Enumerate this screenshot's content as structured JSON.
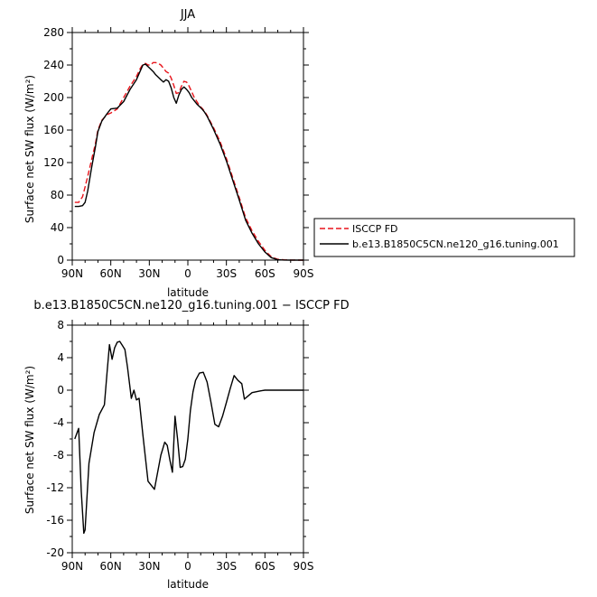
{
  "chart_data": [
    {
      "type": "line",
      "title": "JJA",
      "xlabel": "latitude",
      "ylabel": "Surface net SW flux (W/m²)",
      "xlim": [
        90,
        -90
      ],
      "ylim": [
        0,
        280
      ],
      "xticks": [
        90,
        60,
        30,
        0,
        -30,
        -60,
        -90
      ],
      "xtick_labels": [
        "90N",
        "60N",
        "30N",
        "0",
        "30S",
        "60S",
        "90S"
      ],
      "yticks": [
        0,
        40,
        80,
        120,
        160,
        200,
        240,
        280
      ],
      "ytick_labels": [
        "0",
        "40",
        "80",
        "120",
        "160",
        "200",
        "240",
        "280"
      ],
      "grid": false,
      "legend_position": "right",
      "series": [
        {
          "name": "ISCCP FD",
          "color": "#e8141b",
          "dash": "dashed",
          "x": [
            88,
            85,
            82,
            80,
            78,
            75,
            72,
            70,
            67,
            63,
            60,
            55,
            50,
            45,
            40,
            37,
            35,
            33,
            31,
            29,
            27,
            25,
            23,
            21,
            19,
            17,
            15,
            13,
            11,
            9,
            7,
            5,
            3,
            1,
            -1,
            -3,
            -5,
            -7,
            -9,
            -11,
            -13,
            -15,
            -20,
            -25,
            -30,
            -35,
            -40,
            -45,
            -50,
            -55,
            -60,
            -65,
            -70,
            -75,
            -80,
            -85,
            -90
          ],
          "y": [
            71,
            71,
            78,
            90,
            103,
            123,
            143,
            160,
            172,
            179,
            181,
            186,
            200,
            214,
            226,
            236,
            241,
            242,
            240,
            240,
            243,
            243,
            242,
            240,
            236,
            232,
            230,
            224,
            215,
            205,
            206,
            214,
            220,
            219,
            214,
            207,
            200,
            195,
            190,
            187,
            183,
            178,
            163,
            146,
            125,
            101,
            77,
            52,
            36,
            23,
            12,
            4,
            1,
            0.3,
            0.1,
            0,
            0
          ]
        },
        {
          "name": "b.e13.B1850C5CN.ne120_g16.tuning.001",
          "color": "#000000",
          "dash": "solid",
          "x": [
            88,
            85,
            82,
            80,
            78,
            75,
            72,
            70,
            67,
            63,
            60,
            55,
            50,
            45,
            40,
            37,
            35,
            33,
            31,
            29,
            27,
            25,
            23,
            21,
            19,
            17,
            15,
            13,
            11,
            9,
            7,
            5,
            3,
            1,
            -1,
            -3,
            -5,
            -7,
            -9,
            -11,
            -13,
            -15,
            -20,
            -25,
            -30,
            -35,
            -40,
            -45,
            -50,
            -55,
            -60,
            -65,
            -70,
            -75,
            -80,
            -85,
            -90
          ],
          "y": [
            66,
            66,
            67,
            71,
            85,
            113,
            139,
            158,
            171,
            180,
            186,
            187,
            195,
            210,
            222,
            233,
            240,
            241,
            238,
            235,
            232,
            228,
            225,
            222,
            219,
            222,
            220,
            212,
            200,
            193,
            203,
            210,
            213,
            210,
            206,
            200,
            196,
            192,
            189,
            186,
            182,
            177,
            161,
            143,
            122,
            98,
            74,
            49,
            33,
            20,
            10,
            3,
            0.5,
            0.1,
            0,
            0,
            0
          ]
        }
      ]
    },
    {
      "type": "line",
      "title": "b.e13.B1850C5CN.ne120_g16.tuning.001 − ISCCP FD",
      "xlabel": "latitude",
      "ylabel": "Surface net SW flux (W/m²)",
      "xlim": [
        90,
        -90
      ],
      "ylim": [
        -20,
        8
      ],
      "xticks": [
        90,
        60,
        30,
        0,
        -30,
        -60,
        -90
      ],
      "xtick_labels": [
        "90N",
        "60N",
        "30N",
        "0",
        "30S",
        "60S",
        "90S"
      ],
      "yticks": [
        -20,
        -16,
        -12,
        -8,
        -4,
        0,
        4,
        8
      ],
      "ytick_labels": [
        "-20",
        "-16",
        "-12",
        "-8",
        "-4",
        "0",
        "4",
        "8"
      ],
      "grid": false,
      "series": [
        {
          "name": "",
          "color": "#000000",
          "dash": "solid",
          "x": [
            88,
            85,
            83,
            81,
            80,
            77,
            73,
            69,
            65,
            63,
            61,
            59,
            57,
            55,
            53,
            51,
            49,
            47,
            44,
            42,
            40,
            38,
            35,
            31,
            26,
            21,
            18,
            16,
            14,
            12,
            10,
            8,
            6,
            4,
            2,
            0,
            -2,
            -4,
            -6,
            -9,
            -12,
            -15,
            -18,
            -21,
            -24,
            -27,
            -30,
            -33,
            -36,
            -39,
            -42,
            -44,
            -47,
            -50,
            -53,
            -56,
            -58,
            -60,
            -63,
            -66,
            -70,
            -75,
            -80,
            -85,
            -90
          ],
          "y": [
            -6,
            -4.7,
            -12.5,
            -17.6,
            -17.2,
            -9,
            -5.2,
            -3,
            -1.8,
            2,
            5.6,
            3.8,
            5.2,
            5.9,
            6.0,
            5.5,
            5.0,
            2.8,
            -1.0,
            0.0,
            -1.2,
            -1.0,
            -5.5,
            -11.2,
            -12.2,
            -8,
            -6.4,
            -6.8,
            -8.6,
            -10.1,
            -3.2,
            -6.0,
            -9.5,
            -9.4,
            -8.5,
            -6.0,
            -2.5,
            -0.2,
            1.2,
            2.1,
            2.2,
            1.0,
            -1.5,
            -4.2,
            -4.5,
            -3.2,
            -1.5,
            0.2,
            1.8,
            1.2,
            0.8,
            -1.1,
            -0.7,
            -0.3,
            -0.2,
            -0.1,
            -0.05,
            0,
            0,
            0,
            0,
            0,
            0,
            0,
            0
          ]
        }
      ]
    }
  ]
}
